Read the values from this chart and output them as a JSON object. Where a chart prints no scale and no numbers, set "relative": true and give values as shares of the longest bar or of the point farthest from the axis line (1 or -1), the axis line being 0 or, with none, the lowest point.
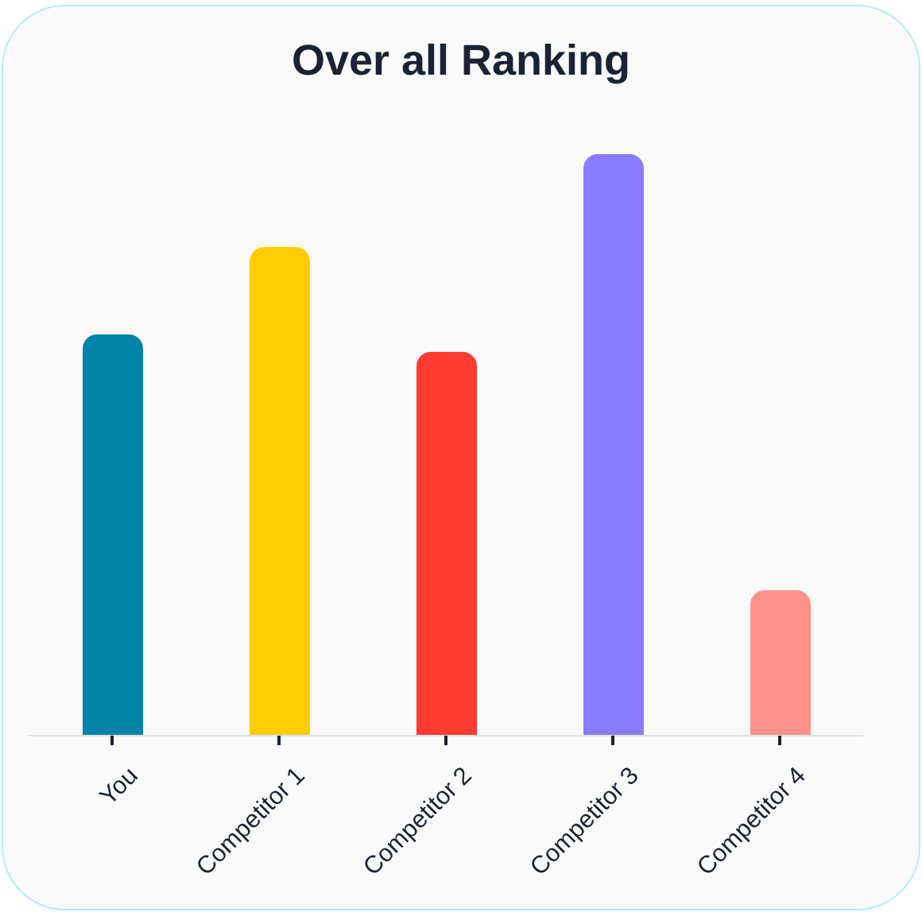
{
  "chart_data": {
    "type": "bar",
    "title": "Over all Ranking",
    "categories": [
      "You",
      "Competitor 1",
      "Competitor 2",
      "Competitor 3",
      "Competitor 4"
    ],
    "values": [
      0.69,
      0.84,
      0.66,
      1,
      0.25
    ],
    "colors": [
      "#0284a8",
      "#ffcc00",
      "#ff3b30",
      "#8b7bff",
      "#ff918a"
    ],
    "relative": true
  }
}
